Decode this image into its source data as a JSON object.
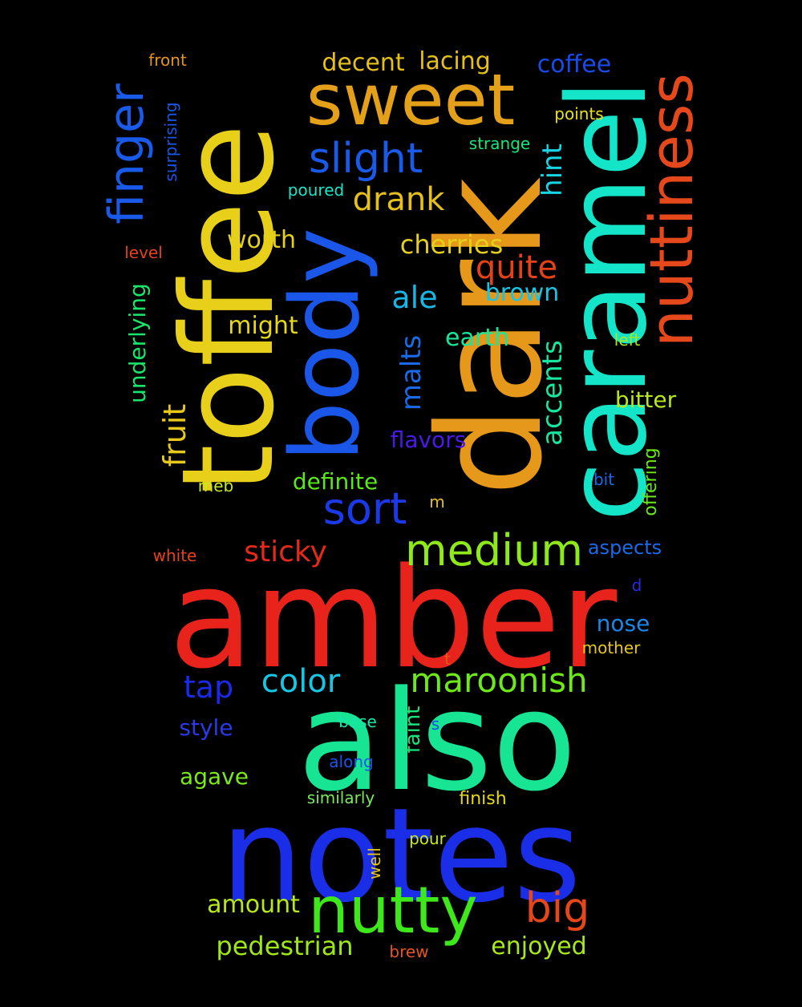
{
  "background": "#000000",
  "words": [
    {
      "text": "amber",
      "color": "#e8231c"
    },
    {
      "text": "also",
      "color": "#18e594"
    },
    {
      "text": "notes",
      "color": "#1a2ee8"
    },
    {
      "text": "dark",
      "color": "#e5981a"
    },
    {
      "text": "toffee",
      "color": "#e8cf1a"
    },
    {
      "text": "caramel",
      "color": "#14e5c8"
    },
    {
      "text": "body",
      "color": "#1a56e8"
    },
    {
      "text": "sweet",
      "color": "#e5a01a"
    },
    {
      "text": "nuttiness",
      "color": "#e5481a"
    },
    {
      "text": "nutty",
      "color": "#3ee81a"
    },
    {
      "text": "medium",
      "color": "#8ee81a"
    },
    {
      "text": "finger",
      "color": "#1a5ae8"
    },
    {
      "text": "slight",
      "color": "#1a5ae8"
    },
    {
      "text": "sort",
      "color": "#1a3ae8"
    },
    {
      "text": "big",
      "color": "#e5461a"
    },
    {
      "text": "maroonish",
      "color": "#6ee81a"
    },
    {
      "text": "color",
      "color": "#18c5e5"
    },
    {
      "text": "drank",
      "color": "#e5c01a"
    },
    {
      "text": "quite",
      "color": "#e5421a"
    },
    {
      "text": "sticky",
      "color": "#e5291a"
    },
    {
      "text": "tap",
      "color": "#1a2ae8"
    },
    {
      "text": "ale",
      "color": "#18b5e5"
    },
    {
      "text": "fruit",
      "color": "#e8c81a"
    },
    {
      "text": "malts",
      "color": "#1a6ae8"
    },
    {
      "text": "accents",
      "color": "#18e5a0"
    },
    {
      "text": "hint",
      "color": "#18d5e5"
    },
    {
      "text": "cherries",
      "color": "#e5d01a"
    },
    {
      "text": "worth",
      "color": "#e5d01a"
    },
    {
      "text": "brown",
      "color": "#18c5e5"
    },
    {
      "text": "earth",
      "color": "#18e59a"
    },
    {
      "text": "might",
      "color": "#e8d81a"
    },
    {
      "text": "coffee",
      "color": "#1a4ae8"
    },
    {
      "text": "lacing",
      "color": "#e5c01a"
    },
    {
      "text": "decent",
      "color": "#e5c01a"
    },
    {
      "text": "bitter",
      "color": "#b8e81a"
    },
    {
      "text": "flavors",
      "color": "#4a1ae8"
    },
    {
      "text": "definite",
      "color": "#5ae81a"
    },
    {
      "text": "underlying",
      "color": "#18e56a"
    },
    {
      "text": "pedestrian",
      "color": "#9ee81a"
    },
    {
      "text": "enjoyed",
      "color": "#a8e81a"
    },
    {
      "text": "amount",
      "color": "#b8e81a"
    },
    {
      "text": "agave",
      "color": "#7ae81a"
    },
    {
      "text": "style",
      "color": "#2a3ae8"
    },
    {
      "text": "nose",
      "color": "#1a86e8"
    },
    {
      "text": "aspects",
      "color": "#1a6ae8"
    },
    {
      "text": "faint",
      "color": "#18e57a"
    },
    {
      "text": "finish",
      "color": "#e5d81a"
    },
    {
      "text": "offering",
      "color": "#6ae81a"
    },
    {
      "text": "similarly",
      "color": "#7ae85a"
    },
    {
      "text": "along",
      "color": "#1a56e8"
    },
    {
      "text": "pour",
      "color": "#c8e81a"
    },
    {
      "text": "strange",
      "color": "#18e57a"
    },
    {
      "text": "poured",
      "color": "#18e5c8"
    },
    {
      "text": "surprising",
      "color": "#1a56e8"
    },
    {
      "text": "points",
      "color": "#e8e01a"
    },
    {
      "text": "front",
      "color": "#e5961a"
    },
    {
      "text": "level",
      "color": "#e5421a"
    },
    {
      "text": "left",
      "color": "#a8e81a"
    },
    {
      "text": "bit",
      "color": "#1a6ae8"
    },
    {
      "text": "meb",
      "color": "#c8e81a"
    },
    {
      "text": "white",
      "color": "#e5421a"
    },
    {
      "text": "mother",
      "color": "#e5c81a"
    },
    {
      "text": "base",
      "color": "#18e5aa"
    },
    {
      "text": "well",
      "color": "#e5c81a"
    },
    {
      "text": "brew",
      "color": "#e5561a"
    },
    {
      "text": "m",
      "color": "#e5c01a"
    },
    {
      "text": "d",
      "color": "#2a2ae8"
    },
    {
      "text": "t",
      "color": "#e5561a"
    },
    {
      "text": "s",
      "color": "#1a4ae8"
    }
  ]
}
